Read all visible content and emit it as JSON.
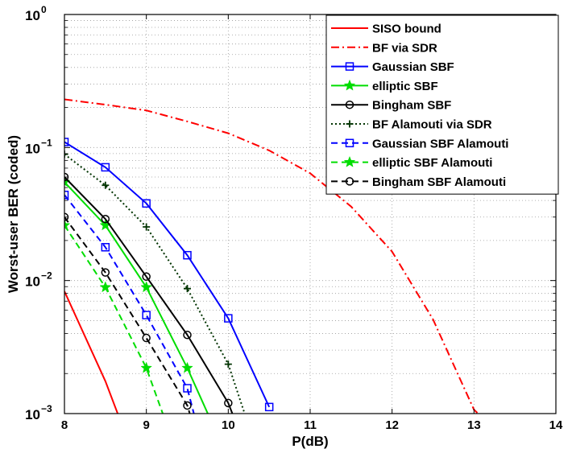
{
  "chart_data": {
    "type": "line",
    "title": "",
    "xlabel": "P(dB)",
    "ylabel": "Worst-user BER (coded)",
    "xlim": [
      8,
      14
    ],
    "ylim": [
      0.001,
      1
    ],
    "yscale": "log",
    "grid": true,
    "legend_position": "top-right",
    "x_ticks": [
      8,
      9,
      10,
      11,
      12,
      13,
      14
    ],
    "x_tick_labels": [
      "8",
      "9",
      "10",
      "11",
      "12",
      "13",
      "14"
    ],
    "y_ticks": [
      {
        "value": 0.001,
        "base": "10",
        "exp": "−3"
      },
      {
        "value": 0.01,
        "base": "10",
        "exp": "−2"
      },
      {
        "value": 0.1,
        "base": "10",
        "exp": "−1"
      },
      {
        "value": 1,
        "base": "10",
        "exp": "0"
      }
    ],
    "series": [
      {
        "name": "SISO bound",
        "color": "#ff0000",
        "dash": "solid",
        "marker": "none",
        "x": [
          8,
          8.5,
          8.65
        ],
        "y": [
          0.0083,
          0.00175,
          0.001
        ]
      },
      {
        "name": "BF via SDR",
        "color": "#ff0000",
        "dash": "dashdot",
        "marker": "none",
        "x": [
          8,
          8.5,
          9,
          9.5,
          10,
          10.5,
          11,
          11.5,
          12,
          12.5,
          13,
          13.05
        ],
        "y": [
          0.23,
          0.21,
          0.19,
          0.157,
          0.128,
          0.095,
          0.064,
          0.036,
          0.0165,
          0.0051,
          0.00107,
          0.001
        ]
      },
      {
        "name": "Gaussian SBF",
        "color": "#0000ff",
        "dash": "solid",
        "marker": "square",
        "x": [
          8,
          8.5,
          9,
          9.5,
          10,
          10.5
        ],
        "y": [
          0.11,
          0.071,
          0.038,
          0.0155,
          0.0052,
          0.00112
        ]
      },
      {
        "name": "elliptic SBF",
        "color": "#00dd00",
        "dash": "solid",
        "marker": "star",
        "x": [
          8,
          8.5,
          9,
          9.5,
          9.75
        ],
        "y": [
          0.055,
          0.026,
          0.0089,
          0.0022,
          0.001
        ]
      },
      {
        "name": "Bingham SBF",
        "color": "#000000",
        "dash": "solid",
        "marker": "circle",
        "x": [
          8,
          8.5,
          9,
          9.5,
          10,
          10.05
        ],
        "y": [
          0.06,
          0.029,
          0.0107,
          0.0039,
          0.0012,
          0.001
        ]
      },
      {
        "name": "BF Alamouti via SDR",
        "color": "#003300",
        "dash": "dotted",
        "marker": "plus",
        "x": [
          8,
          8.5,
          9,
          9.5,
          10,
          10.2
        ],
        "y": [
          0.089,
          0.052,
          0.0253,
          0.0087,
          0.00235,
          0.001
        ]
      },
      {
        "name": "Gaussian SBF Alamouti",
        "color": "#0000ff",
        "dash": "dashed",
        "marker": "square",
        "x": [
          8,
          8.5,
          9,
          9.5,
          9.58
        ],
        "y": [
          0.044,
          0.0178,
          0.0055,
          0.00155,
          0.001
        ]
      },
      {
        "name": "elliptic SBF Alamouti",
        "color": "#00dd00",
        "dash": "dashed",
        "marker": "star",
        "x": [
          8,
          8.5,
          9,
          9.2
        ],
        "y": [
          0.026,
          0.0089,
          0.0022,
          0.001
        ]
      },
      {
        "name": "Bingham SBF Alamouti",
        "color": "#000000",
        "dash": "dashed",
        "marker": "circle",
        "x": [
          8,
          8.5,
          9,
          9.5,
          9.53
        ],
        "y": [
          0.03,
          0.0115,
          0.0037,
          0.00115,
          0.001
        ]
      }
    ]
  }
}
